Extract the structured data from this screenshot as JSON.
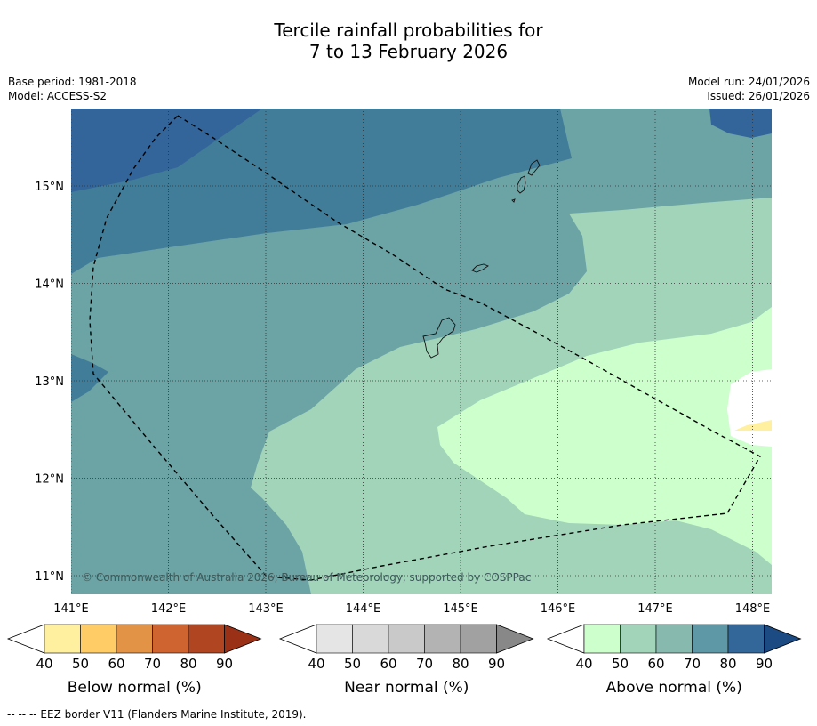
{
  "title": {
    "line1": "Tercile rainfall probabilities for",
    "line2": "7 to 13 February 2026"
  },
  "meta": {
    "base_period": "Base period: 1981-2018",
    "model": "Model: ACCESS-S2",
    "model_run": "Model run: 24/01/2026",
    "issued": "Issued: 26/01/2026"
  },
  "map": {
    "copyright": "© Commonwealth of Australia 2026, Bureau of Meteorology, supported by COSPPac",
    "lon_ticks": [
      "141°E",
      "142°E",
      "143°E",
      "144°E",
      "145°E",
      "146°E",
      "147°E",
      "148°E"
    ],
    "lat_ticks": [
      "15°N",
      "14°N",
      "13°N",
      "12°N",
      "11°N"
    ],
    "lon_values": [
      141,
      142,
      143,
      144,
      145,
      146,
      147,
      148
    ],
    "lat_values": [
      15,
      14,
      13,
      12,
      11
    ]
  },
  "colors": {
    "above": [
      "#ccffcc",
      "#a1d4b9",
      "#87b9af",
      "#5e98a6",
      "#336699",
      "#1c4a82"
    ],
    "near": [
      "#e5e5e5",
      "#d9d9d9",
      "#c9c9c9",
      "#b3b3b3",
      "#a1a1a1",
      "#888888"
    ],
    "below": [
      "#fff0a0",
      "#ffcc66",
      "#e39346",
      "#cf6431",
      "#b04522",
      "#9a3117"
    ],
    "map_ocean": "#6ca3a5"
  },
  "colorbars": [
    {
      "label": "Below normal (%)",
      "ticks": [
        "40",
        "50",
        "60",
        "70",
        "80",
        "90"
      ]
    },
    {
      "label": "Near normal (%)",
      "ticks": [
        "40",
        "50",
        "60",
        "70",
        "80",
        "90"
      ]
    },
    {
      "label": "Above normal (%)",
      "ticks": [
        "40",
        "50",
        "60",
        "70",
        "80",
        "90"
      ]
    }
  ],
  "legend_note": "--  --  -- EEZ border V11 (Flanders Marine Institute, 2019)."
}
